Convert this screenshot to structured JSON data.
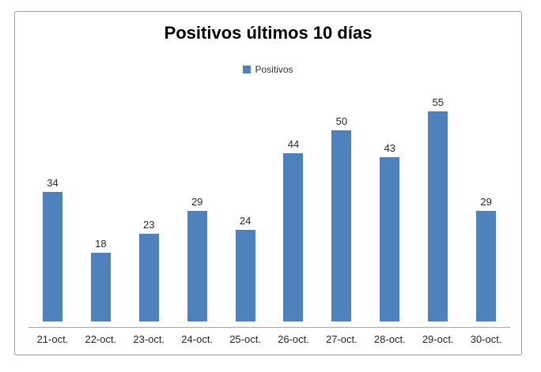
{
  "chart": {
    "title": "Positivos últimos 10 días",
    "legend_label": "Positivos"
  },
  "chart_data": {
    "type": "bar",
    "title": "Positivos últimos 10 días",
    "categories": [
      "21-oct.",
      "22-oct.",
      "23-oct.",
      "24-oct.",
      "25-oct.",
      "26-oct.",
      "27-oct.",
      "28-oct.",
      "29-oct.",
      "30-oct."
    ],
    "values": [
      34,
      18,
      23,
      29,
      24,
      44,
      50,
      43,
      55,
      29
    ],
    "series": [
      {
        "name": "Positivos",
        "values": [
          34,
          18,
          23,
          29,
          24,
          44,
          50,
          43,
          55,
          29
        ]
      }
    ],
    "xlabel": "",
    "ylabel": "",
    "ylim": [
      0,
      60
    ],
    "y_axis_visible": false,
    "grid": false,
    "data_labels": true,
    "legend_position": "top",
    "colors": {
      "bar": "#4F81BD",
      "frame_border": "#9e9e9e",
      "axis_line": "#a6a6a6",
      "label_text": "#262626",
      "title_text": "#000000"
    }
  }
}
